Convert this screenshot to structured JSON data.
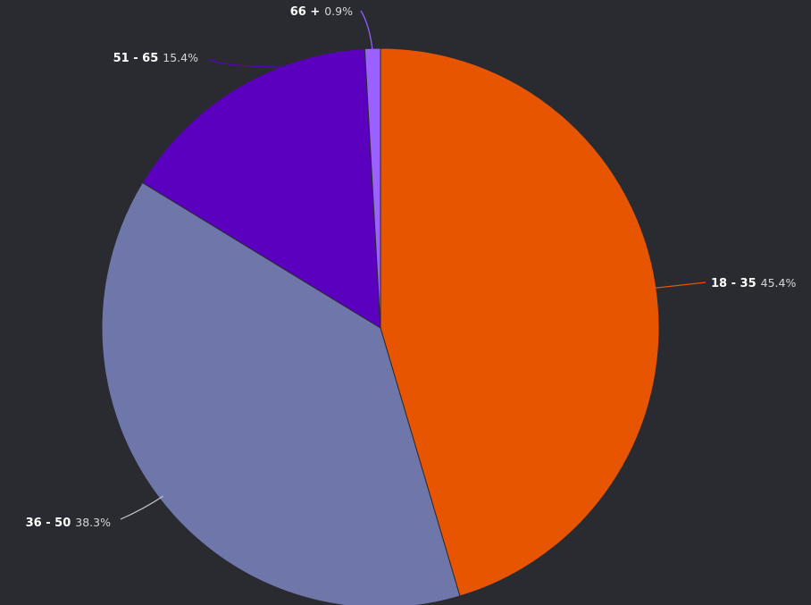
{
  "chart_data": {
    "type": "pie",
    "title": "",
    "series": [
      {
        "slices": [
          {
            "label": "18 - 35",
            "value": 45.4,
            "value_label": "45.4%",
            "color": "#e85500"
          },
          {
            "label": "36 - 50",
            "value": 38.3,
            "value_label": "38.3%",
            "color": "#6e76aa"
          },
          {
            "label": "51 - 65",
            "value": 15.4,
            "value_label": "15.4%",
            "color": "#5c00c0"
          },
          {
            "label": "66 +",
            "value": 0.9,
            "value_label": "0.9%",
            "color": "#9a61ff"
          }
        ]
      }
    ],
    "start_angle": "12 o'clock",
    "direction": "clockwise",
    "legend": "none",
    "data_labels": "outside with leader lines",
    "background": "#2a2b30"
  }
}
